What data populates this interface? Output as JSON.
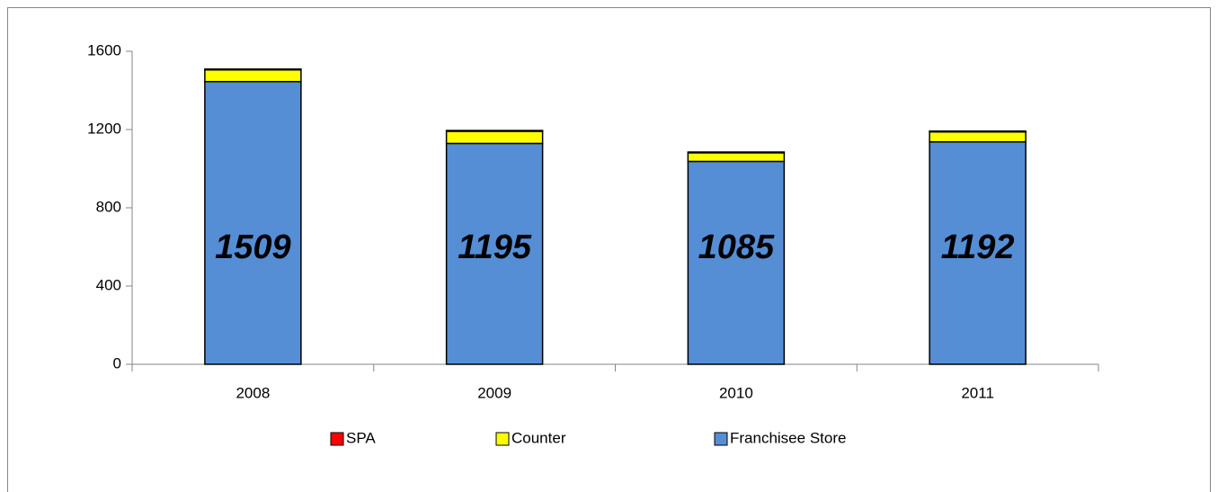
{
  "chart_data": {
    "type": "stacked_bar",
    "categories": [
      "2008",
      "2009",
      "2010",
      "2011"
    ],
    "series": [
      {
        "name": "Franchisee Store",
        "color": "#558ed5",
        "values": [
          1445,
          1129,
          1037,
          1137
        ]
      },
      {
        "name": "Counter",
        "color": "#ffff00",
        "values": [
          60,
          62,
          44,
          51
        ]
      },
      {
        "name": "SPA",
        "color": "#ff0000",
        "values": [
          4,
          4,
          4,
          4
        ]
      }
    ],
    "totals": [
      1509,
      1195,
      1085,
      1192
    ],
    "legend_order": [
      2,
      1,
      0
    ],
    "legend": "bottom",
    "ylim": [
      0,
      1600
    ],
    "yticks": [
      0,
      400,
      800,
      1200,
      1600
    ],
    "grid": false
  }
}
